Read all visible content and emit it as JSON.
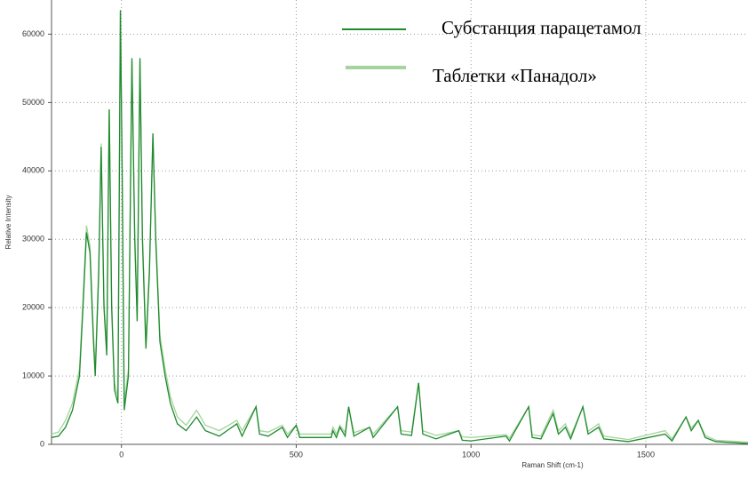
{
  "chart_data": {
    "type": "line",
    "x_label": "Raman Shift (cm-1)",
    "y_label": "Relative Intensity",
    "x": [
      -200,
      -180,
      -160,
      -140,
      -120,
      -110,
      -100,
      -90,
      -80,
      -75,
      -65,
      -58,
      -50,
      -42,
      -35,
      -28,
      -20,
      -10,
      -3,
      2,
      8,
      20,
      30,
      38,
      45,
      53,
      60,
      70,
      80,
      90,
      98,
      110,
      125,
      140,
      160,
      185,
      215,
      240,
      280,
      330,
      345,
      385,
      395,
      420,
      460,
      475,
      500,
      510,
      600,
      605,
      615,
      625,
      640,
      650,
      665,
      710,
      720,
      790,
      800,
      830,
      850,
      862,
      900,
      965,
      975,
      1000,
      1100,
      1110,
      1165,
      1175,
      1200,
      1235,
      1250,
      1270,
      1285,
      1320,
      1335,
      1365,
      1380,
      1450,
      1555,
      1575,
      1615,
      1630,
      1650,
      1670,
      1700,
      1800
    ],
    "series": [
      {
        "name": "Таблетки «Панадол»",
        "color": "#a3d49b",
        "values": [
          1500,
          1800,
          3500,
          6000,
          11000,
          21000,
          32000,
          29000,
          16000,
          11000,
          26000,
          44000,
          21000,
          14000,
          49000,
          21000,
          9000,
          7000,
          63500,
          41000,
          6000,
          11000,
          56000,
          31000,
          19000,
          56000,
          31000,
          15000,
          26000,
          45000,
          31000,
          16000,
          11000,
          7000,
          4000,
          2800,
          5000,
          2800,
          2000,
          3500,
          2000,
          5500,
          2000,
          1800,
          2800,
          1500,
          2800,
          1500,
          1500,
          2500,
          1500,
          2800,
          1700,
          5500,
          1700,
          2500,
          1500,
          5500,
          2000,
          1800,
          9000,
          2000,
          1300,
          2000,
          1100,
          1000,
          1400,
          900,
          5500,
          1400,
          1200,
          5000,
          2000,
          3000,
          1200,
          5500,
          1900,
          3000,
          1200,
          700,
          2000,
          800,
          4000,
          2400,
          3500,
          1300,
          600,
          300
        ]
      },
      {
        "name": "Субстанция парацетамол",
        "color": "#1f8a2e",
        "values": [
          1000,
          1200,
          2500,
          5000,
          10000,
          20000,
          31000,
          28000,
          15000,
          10000,
          25000,
          43500,
          20000,
          13000,
          49000,
          20000,
          8000,
          6000,
          63500,
          40000,
          5000,
          10000,
          56500,
          30000,
          18000,
          56500,
          30000,
          14000,
          25000,
          45500,
          30000,
          15000,
          10000,
          6000,
          3000,
          2000,
          4000,
          2000,
          1200,
          3000,
          1200,
          5500,
          1500,
          1200,
          2500,
          1000,
          2800,
          1000,
          1000,
          2000,
          1000,
          2500,
          1200,
          5500,
          1200,
          2500,
          1000,
          5500,
          1500,
          1300,
          9000,
          1500,
          800,
          2000,
          600,
          500,
          1200,
          500,
          5500,
          1000,
          800,
          4500,
          1500,
          2500,
          800,
          5500,
          1500,
          2500,
          800,
          400,
          1500,
          500,
          4000,
          2000,
          3500,
          1000,
          400,
          100
        ]
      }
    ],
    "xlim": [
      -200,
      1800
    ],
    "xticks": [
      0,
      500,
      1000,
      1500
    ],
    "ylim": [
      0,
      65000
    ],
    "yticks": [
      0,
      10000,
      20000,
      30000,
      40000,
      50000,
      60000
    ],
    "grid": true,
    "legend": "upper right"
  }
}
